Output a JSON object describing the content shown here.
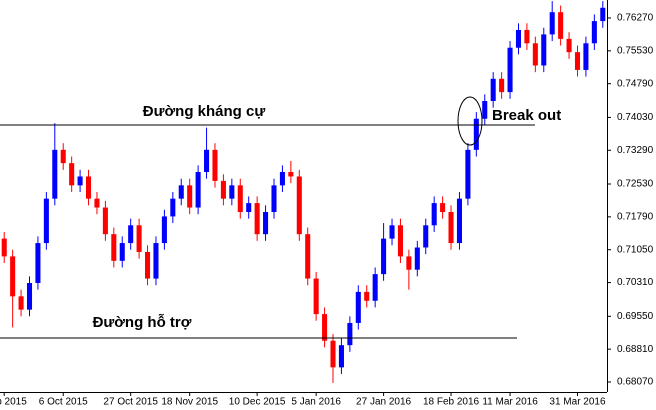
{
  "chart_data": {
    "type": "candlestick",
    "up_color": "#0000ff",
    "down_color": "#ff0000",
    "categories": [
      "p 2015",
      null,
      null,
      null,
      null,
      null,
      null,
      "6 Oct 2015",
      null,
      null,
      null,
      null,
      null,
      null,
      null,
      "27 Oct 2015",
      null,
      null,
      null,
      null,
      null,
      null,
      "18 Nov 2015",
      null,
      null,
      null,
      null,
      null,
      null,
      null,
      "10 Dec 2015",
      null,
      null,
      null,
      null,
      null,
      null,
      "5 Jan 2016",
      null,
      null,
      null,
      null,
      null,
      null,
      null,
      "27 Jan 2016",
      null,
      null,
      null,
      null,
      null,
      null,
      null,
      "18 Feb 2016",
      null,
      null,
      null,
      null,
      null,
      null,
      "11 Mar 2016",
      null,
      null,
      null,
      null,
      null,
      null,
      null,
      "31 Mar 2016",
      null,
      null,
      null
    ],
    "ohlc": [
      [
        0.713,
        0.7145,
        0.7075,
        0.709
      ],
      [
        0.709,
        0.7105,
        0.693,
        0.7
      ],
      [
        0.7,
        0.7015,
        0.6955,
        0.697
      ],
      [
        0.697,
        0.7045,
        0.6955,
        0.703
      ],
      [
        0.703,
        0.7135,
        0.7015,
        0.712
      ],
      [
        0.712,
        0.7235,
        0.7105,
        0.722
      ],
      [
        0.722,
        0.739,
        0.7205,
        0.733
      ],
      [
        0.733,
        0.7345,
        0.7285,
        0.73
      ],
      [
        0.73,
        0.7315,
        0.7235,
        0.725
      ],
      [
        0.725,
        0.7285,
        0.7235,
        0.727
      ],
      [
        0.727,
        0.7285,
        0.7205,
        0.722
      ],
      [
        0.722,
        0.7235,
        0.7185,
        0.72
      ],
      [
        0.72,
        0.7215,
        0.7125,
        0.714
      ],
      [
        0.714,
        0.7155,
        0.7065,
        0.708
      ],
      [
        0.708,
        0.7135,
        0.7065,
        0.712
      ],
      [
        0.712,
        0.7175,
        0.7105,
        0.716
      ],
      [
        0.716,
        0.7175,
        0.7085,
        0.71
      ],
      [
        0.71,
        0.7115,
        0.7025,
        0.704
      ],
      [
        0.704,
        0.7135,
        0.7025,
        0.712
      ],
      [
        0.712,
        0.7195,
        0.7105,
        0.718
      ],
      [
        0.718,
        0.7235,
        0.7165,
        0.722
      ],
      [
        0.722,
        0.7265,
        0.7205,
        0.725
      ],
      [
        0.725,
        0.7265,
        0.7185,
        0.72
      ],
      [
        0.72,
        0.7295,
        0.7185,
        0.728
      ],
      [
        0.728,
        0.738,
        0.7265,
        0.733
      ],
      [
        0.733,
        0.7345,
        0.7245,
        0.726
      ],
      [
        0.726,
        0.7275,
        0.7205,
        0.722
      ],
      [
        0.722,
        0.7265,
        0.7205,
        0.725
      ],
      [
        0.725,
        0.7265,
        0.7175,
        0.719
      ],
      [
        0.719,
        0.7225,
        0.7175,
        0.721
      ],
      [
        0.721,
        0.7225,
        0.7125,
        0.714
      ],
      [
        0.714,
        0.7205,
        0.7125,
        0.719
      ],
      [
        0.719,
        0.7265,
        0.7175,
        0.725
      ],
      [
        0.725,
        0.7295,
        0.7235,
        0.728
      ],
      [
        0.728,
        0.7305,
        0.7255,
        0.727
      ],
      [
        0.727,
        0.7285,
        0.7125,
        0.714
      ],
      [
        0.714,
        0.7155,
        0.7025,
        0.704
      ],
      [
        0.704,
        0.7055,
        0.6945,
        0.696
      ],
      [
        0.696,
        0.6975,
        0.6885,
        0.69
      ],
      [
        0.69,
        0.6915,
        0.6805,
        0.684
      ],
      [
        0.684,
        0.6905,
        0.6825,
        0.689
      ],
      [
        0.689,
        0.6955,
        0.6875,
        0.694
      ],
      [
        0.694,
        0.7025,
        0.6925,
        0.701
      ],
      [
        0.701,
        0.7025,
        0.6975,
        0.699
      ],
      [
        0.699,
        0.7065,
        0.6975,
        0.705
      ],
      [
        0.705,
        0.7165,
        0.7035,
        0.713
      ],
      [
        0.713,
        0.7175,
        0.7115,
        0.716
      ],
      [
        0.716,
        0.7175,
        0.7075,
        0.709
      ],
      [
        0.709,
        0.7105,
        0.7015,
        0.706
      ],
      [
        0.706,
        0.7125,
        0.7045,
        0.711
      ],
      [
        0.711,
        0.7175,
        0.7095,
        0.716
      ],
      [
        0.716,
        0.7225,
        0.7145,
        0.721
      ],
      [
        0.721,
        0.7225,
        0.7175,
        0.719
      ],
      [
        0.719,
        0.7205,
        0.7105,
        0.712
      ],
      [
        0.712,
        0.7235,
        0.7105,
        0.722
      ],
      [
        0.722,
        0.7345,
        0.7205,
        0.733
      ],
      [
        0.733,
        0.7415,
        0.7315,
        0.74
      ],
      [
        0.74,
        0.7455,
        0.7385,
        0.744
      ],
      [
        0.744,
        0.7505,
        0.7425,
        0.749
      ],
      [
        0.749,
        0.7505,
        0.7445,
        0.746
      ],
      [
        0.746,
        0.7575,
        0.7445,
        0.756
      ],
      [
        0.756,
        0.7615,
        0.7545,
        0.76
      ],
      [
        0.76,
        0.7615,
        0.7555,
        0.757
      ],
      [
        0.757,
        0.7585,
        0.7505,
        0.752
      ],
      [
        0.752,
        0.7605,
        0.7505,
        0.759
      ],
      [
        0.759,
        0.7665,
        0.7575,
        0.764
      ],
      [
        0.764,
        0.7655,
        0.7565,
        0.758
      ],
      [
        0.758,
        0.7595,
        0.7535,
        0.755
      ],
      [
        0.755,
        0.7565,
        0.7495,
        0.751
      ],
      [
        0.751,
        0.7585,
        0.7495,
        0.757
      ],
      [
        0.757,
        0.7635,
        0.7555,
        0.762
      ],
      [
        0.762,
        0.7665,
        0.7605,
        0.765
      ]
    ],
    "ylim": [
      0.67845,
      0.76675
    ],
    "yticks": [
      {
        "value": 0.7627,
        "label": "0.76270"
      },
      {
        "value": 0.7553,
        "label": "0.75530"
      },
      {
        "value": 0.7479,
        "label": "0.74790"
      },
      {
        "value": 0.7403,
        "label": "0.74030"
      },
      {
        "value": 0.7329,
        "label": "0.73290"
      },
      {
        "value": 0.7253,
        "label": "0.72530"
      },
      {
        "value": 0.7179,
        "label": "0.71790"
      },
      {
        "value": 0.7105,
        "label": "0.71050"
      },
      {
        "value": 0.7031,
        "label": "0.70310"
      },
      {
        "value": 0.6955,
        "label": "0.69550"
      },
      {
        "value": 0.6881,
        "label": "0.68810"
      },
      {
        "value": 0.6807,
        "label": "0.68070"
      }
    ],
    "resistance": {
      "label": "Đường kháng cự",
      "value": 0.7386
    },
    "support": {
      "label": "Đường hỗ trợ",
      "value": 0.6906
    },
    "breakout_label": "Break out"
  }
}
